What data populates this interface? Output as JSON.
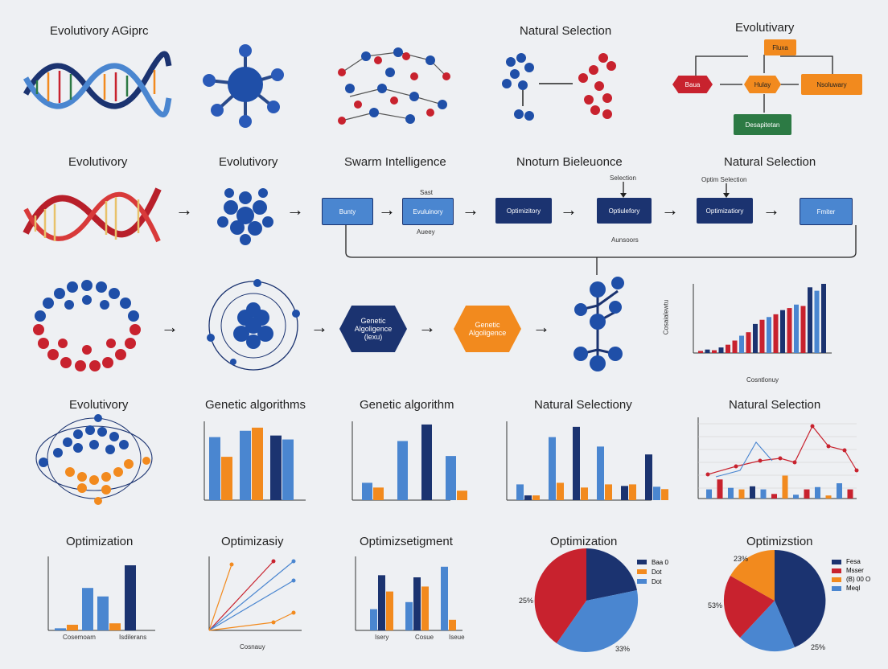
{
  "titles": {
    "r1": [
      "Evolutivory AGiprc",
      "Natural Selection",
      "Evolutivary"
    ],
    "r2": [
      "Evolutivory",
      "Evolutivory",
      "Swarm Intelligence",
      "Nnoturn Bieleuonce",
      "Natural Selection"
    ],
    "r4": [
      "Evolutivory",
      "Genetic algorithms",
      "Genetic algorithm",
      "Natural Selectiony",
      "Natural Selection"
    ],
    "r5": [
      "Optimization",
      "Optimizasiy",
      "Optimizsetigment",
      "Optimization",
      "Optimizstion"
    ]
  },
  "flow_r1": {
    "top": "Fluxa",
    "left": "Baua",
    "mid": "Hulay",
    "right": "Nsoluwary",
    "bottom": "Desapitetan"
  },
  "flow_r2": {
    "boxes": [
      "Bunty",
      "Evuluinory",
      "Optimizitory",
      "Optiulefory",
      "Optimizatiory",
      "Fmiter"
    ],
    "notes": {
      "above_b2": "Sast",
      "below_b2": "Aueey",
      "above_b4": "Selection",
      "below_b4": "Aunsoors",
      "above_b5": "Optim Selection"
    }
  },
  "hex": [
    {
      "l1": "Genetic",
      "l2": "Algoligence",
      "l3": "(lexu)"
    },
    {
      "l1": "Genetic",
      "l2": "Algoligence",
      "l3": ""
    }
  ],
  "r3chart": {
    "ylabel": "Cosaialewtu",
    "xlabel": "Cosntlonuy"
  },
  "r5c1": {
    "xlabels": [
      "Cosemoam",
      "Isdilerans"
    ]
  },
  "r5c2": {
    "xlabel": "Cosnauy"
  },
  "r5c3": {
    "xlabels": [
      "Isery",
      "Cosue",
      "Iseue"
    ]
  },
  "pie1": {
    "legend": [
      "Baa 0",
      "Dot",
      "Dot"
    ],
    "pcts": [
      "25%",
      "33%"
    ]
  },
  "pie2": {
    "legend": [
      "Fesa",
      "Msser",
      "(B) 00 O",
      "Meql"
    ],
    "pcts": [
      "23%",
      "53%",
      "25%"
    ]
  },
  "colors": {
    "navy": "#1b3370",
    "blue": "#4a86d0",
    "red": "#c8222e",
    "orange": "#f28a1e",
    "green": "#2c7a44"
  }
}
